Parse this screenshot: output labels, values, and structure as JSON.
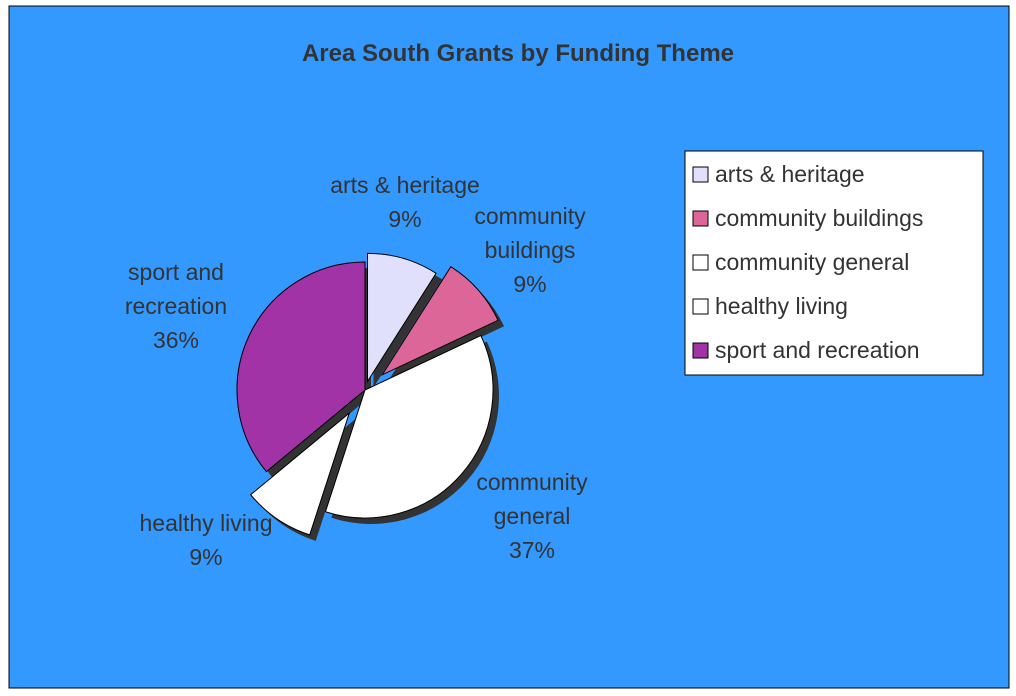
{
  "chart_data": {
    "type": "pie",
    "title": "Area South Grants by Funding Theme",
    "background_color": "#3399FF",
    "exploded": true,
    "slices": [
      {
        "name": "arts & heritage",
        "percent": 9,
        "color": "#E0E0FC",
        "label_lines": [
          "arts & heritage",
          "9%"
        ]
      },
      {
        "name": "community buildings",
        "percent": 9,
        "color": "#DD6699",
        "label_lines": [
          "community",
          "buildings",
          "9%"
        ]
      },
      {
        "name": "community general",
        "percent": 37,
        "color": "#FFFFFF",
        "label_lines": [
          "community",
          "general",
          "37%"
        ]
      },
      {
        "name": "healthy living",
        "percent": 9,
        "color": "#FFFFFF",
        "label_lines": [
          "healthy living",
          "9%"
        ]
      },
      {
        "name": "sport and recreation",
        "percent": 36,
        "color": "#A233A6",
        "label_lines": [
          "sport and",
          "recreation",
          "36%"
        ]
      }
    ],
    "legend": {
      "position": "right",
      "entries": [
        "arts & heritage",
        "community buildings",
        "community general",
        "healthy living",
        "sport and recreation"
      ]
    }
  }
}
